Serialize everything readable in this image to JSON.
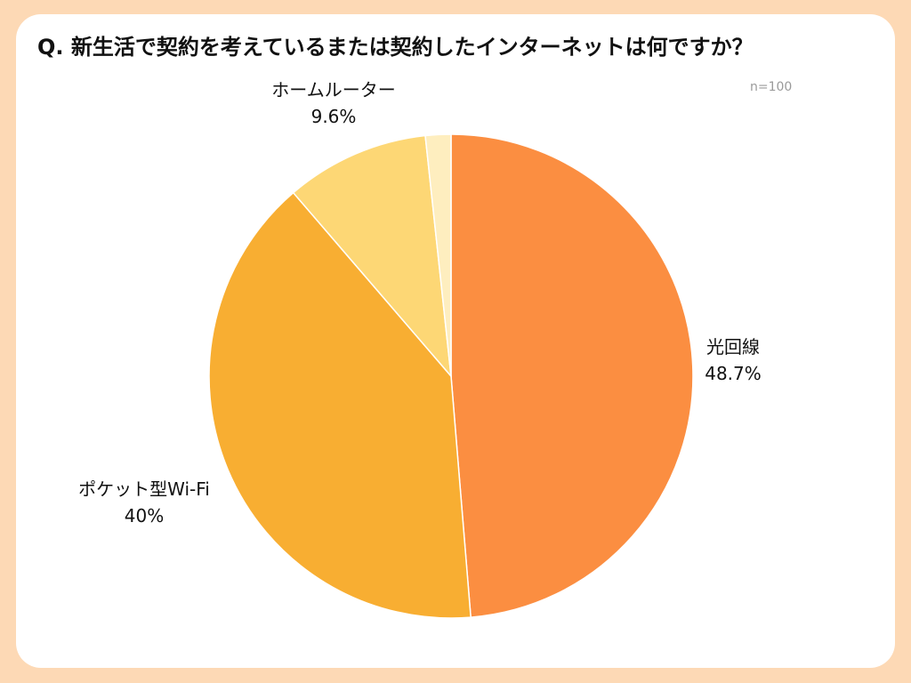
{
  "title": "Q. 新生活で契約を考えているまたは契約したインターネットは何ですか？",
  "sample_size": "n=100",
  "chart_data": {
    "type": "pie",
    "title": "Q. 新生活で契約を考えているまたは契約したインターネットは何ですか？",
    "slices": [
      {
        "label": "光回線",
        "value": 48.7,
        "value_label": "48.7%",
        "color": "#fb8e41"
      },
      {
        "label": "ポケット型Wi-Fi",
        "value": 40,
        "value_label": "40%",
        "color": "#f8ae32"
      },
      {
        "label": "ホームルーター",
        "value": 9.6,
        "value_label": "9.6%",
        "color": "#fdd775"
      },
      {
        "label": "",
        "value": 1.7,
        "value_label": "",
        "color": "#feeebf"
      }
    ],
    "start_angle": "12 o'clock",
    "direction": "clockwise",
    "legend": "none"
  }
}
